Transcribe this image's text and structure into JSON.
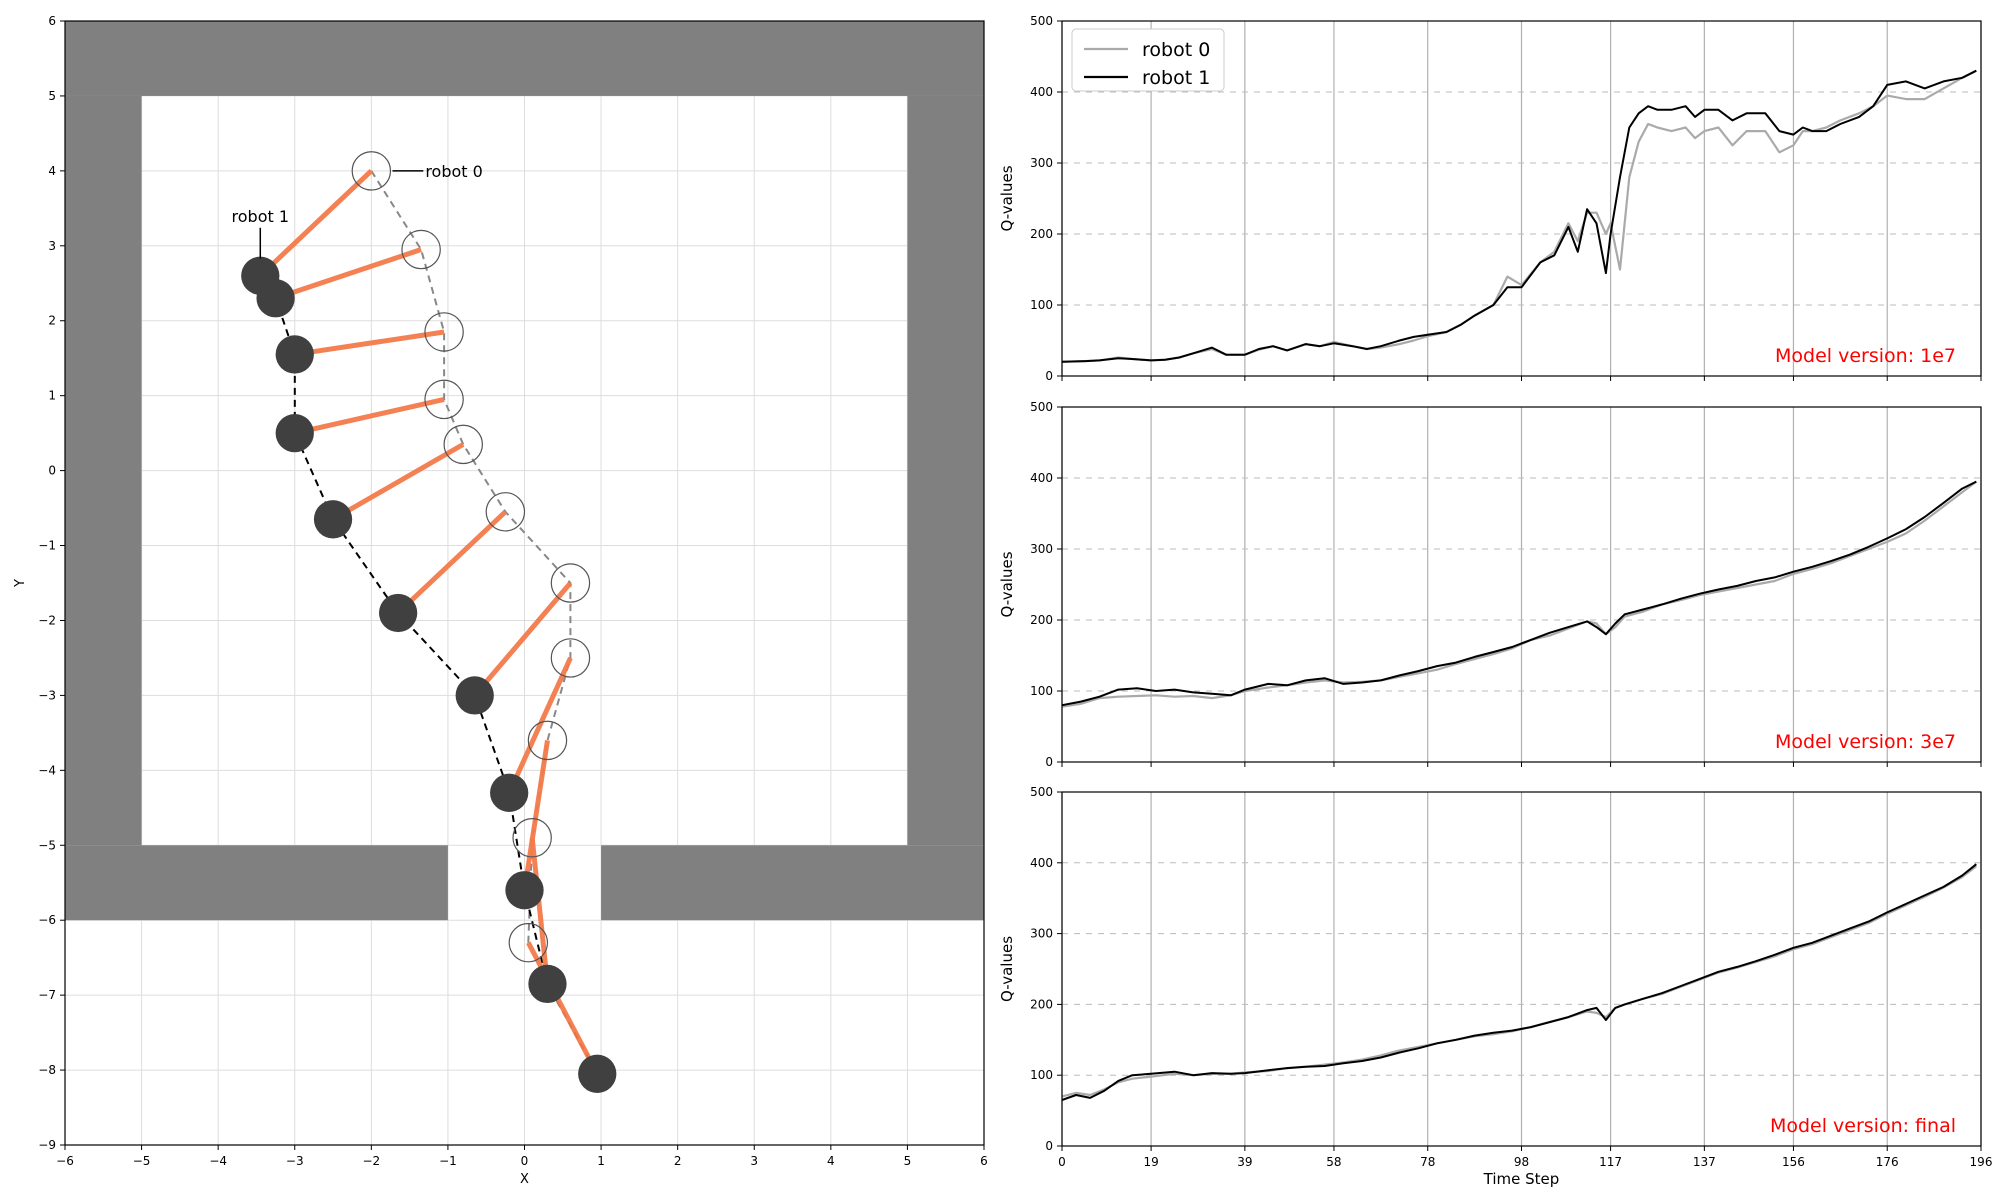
{
  "figure": {
    "width": 2000,
    "height": 1200
  },
  "chart_data": [
    {
      "type": "scatter",
      "subtype": "trajectory-map",
      "xlabel": "X",
      "ylabel": "Y",
      "xlim": [
        -6,
        6
      ],
      "ylim": [
        -9,
        6
      ],
      "xticks": [
        "−6",
        "−5",
        "−4",
        "−3",
        "−2",
        "−1",
        "0",
        "1",
        "2",
        "3",
        "4",
        "5",
        "6"
      ],
      "yticks": [
        "−9",
        "−8",
        "−7",
        "−6",
        "−5",
        "−4",
        "−3",
        "−2",
        "−1",
        "0",
        "1",
        "2",
        "3",
        "4",
        "5",
        "6"
      ],
      "grid": true,
      "walls": [
        {
          "x0": -6,
          "x1": 6,
          "y0": 5,
          "y1": 6
        },
        {
          "x0": -6,
          "x1": -5,
          "y0": -5,
          "y1": 5
        },
        {
          "x0": 5,
          "x1": 6,
          "y0": -5,
          "y1": 5
        },
        {
          "x0": -6,
          "x1": -1,
          "y0": -6,
          "y1": -5
        },
        {
          "x0": 1,
          "x1": 6,
          "y0": -6,
          "y1": -5
        }
      ],
      "colors": {
        "wall": "#808080",
        "link": "#f47b4a",
        "robot1": "#404040",
        "robot0_edge": "#555555",
        "robot0_path": "#888888",
        "robot1_path": "#000000"
      },
      "robot0": {
        "label": "robot 0",
        "points": [
          [
            -2.0,
            4.0
          ],
          [
            -1.35,
            2.95
          ],
          [
            -1.05,
            1.85
          ],
          [
            -1.05,
            0.95
          ],
          [
            -0.8,
            0.35
          ],
          [
            -0.25,
            -0.55
          ],
          [
            0.6,
            -1.5
          ],
          [
            0.6,
            -2.5
          ],
          [
            0.3,
            -3.6
          ],
          [
            0.1,
            -4.9
          ],
          [
            0.05,
            -6.3
          ]
        ]
      },
      "robot1": {
        "label": "robot 1",
        "points": [
          [
            -3.45,
            2.6
          ],
          [
            -3.25,
            2.3
          ],
          [
            -3.0,
            1.55
          ],
          [
            -3.0,
            0.5
          ],
          [
            -2.5,
            -0.65
          ],
          [
            -1.65,
            -1.9
          ],
          [
            -0.65,
            -3.0
          ],
          [
            -0.2,
            -4.3
          ],
          [
            0.0,
            -5.6
          ],
          [
            0.3,
            -6.85
          ],
          [
            0.95,
            -8.05
          ]
        ]
      }
    },
    {
      "type": "line",
      "ylabel": "Q-values",
      "xlabel": "",
      "xlim": [
        0,
        196
      ],
      "ylim": [
        0,
        500
      ],
      "xticks": [
        0,
        19,
        39,
        58,
        78,
        98,
        117,
        137,
        156,
        176,
        196
      ],
      "yticks": [
        0,
        100,
        200,
        300,
        400,
        500
      ],
      "annotation": "Model version: 1e7",
      "legend": {
        "position": "top-left"
      },
      "series": [
        {
          "name": "robot 0",
          "color": "#aaaaaa",
          "x": [
            0,
            5,
            8,
            12,
            15,
            19,
            22,
            25,
            28,
            32,
            35,
            39,
            42,
            45,
            48,
            52,
            55,
            58,
            62,
            65,
            68,
            72,
            75,
            78,
            82,
            85,
            88,
            92,
            95,
            98,
            102,
            105,
            108,
            110,
            112,
            114,
            116,
            117,
            119,
            121,
            123,
            125,
            127,
            130,
            133,
            135,
            137,
            140,
            143,
            146,
            150,
            153,
            156,
            158,
            160,
            163,
            166,
            170,
            173,
            176,
            180,
            184,
            188,
            192,
            195
          ],
          "y": [
            20,
            21,
            22,
            26,
            24,
            22,
            23,
            26,
            32,
            38,
            30,
            30,
            37,
            42,
            36,
            45,
            42,
            48,
            42,
            38,
            40,
            45,
            50,
            56,
            62,
            72,
            85,
            100,
            140,
            128,
            160,
            175,
            215,
            190,
            230,
            230,
            200,
            215,
            150,
            280,
            330,
            355,
            350,
            345,
            350,
            335,
            345,
            350,
            325,
            345,
            345,
            315,
            325,
            345,
            345,
            350,
            360,
            370,
            380,
            395,
            390,
            390,
            405,
            420,
            430
          ]
        },
        {
          "name": "robot 1",
          "color": "#000000",
          "x": [
            0,
            5,
            8,
            12,
            15,
            19,
            22,
            25,
            28,
            32,
            35,
            39,
            42,
            45,
            48,
            52,
            55,
            58,
            62,
            65,
            68,
            72,
            75,
            78,
            82,
            85,
            88,
            92,
            95,
            98,
            102,
            105,
            108,
            110,
            112,
            114,
            116,
            117,
            119,
            121,
            123,
            125,
            127,
            130,
            133,
            135,
            137,
            140,
            143,
            146,
            150,
            153,
            156,
            158,
            160,
            163,
            166,
            170,
            173,
            176,
            180,
            184,
            188,
            192,
            195
          ],
          "y": [
            20,
            21,
            22,
            25,
            24,
            22,
            23,
            26,
            32,
            40,
            30,
            30,
            38,
            42,
            36,
            45,
            42,
            46,
            42,
            38,
            42,
            50,
            55,
            58,
            62,
            72,
            85,
            100,
            125,
            125,
            160,
            170,
            210,
            175,
            235,
            215,
            145,
            200,
            280,
            350,
            370,
            380,
            375,
            375,
            380,
            365,
            375,
            375,
            360,
            370,
            370,
            345,
            340,
            350,
            345,
            345,
            355,
            365,
            380,
            410,
            415,
            405,
            415,
            420,
            430
          ]
        }
      ]
    },
    {
      "type": "line",
      "ylabel": "Q-values",
      "xlabel": "",
      "xlim": [
        0,
        196
      ],
      "ylim": [
        0,
        500
      ],
      "xticks": [
        0,
        19,
        39,
        58,
        78,
        98,
        117,
        137,
        156,
        176,
        196
      ],
      "yticks": [
        0,
        100,
        200,
        300,
        400,
        500
      ],
      "annotation": "Model version: 3e7",
      "series": [
        {
          "name": "robot 0",
          "color": "#aaaaaa",
          "x": [
            0,
            4,
            8,
            12,
            16,
            20,
            24,
            28,
            32,
            36,
            39,
            44,
            48,
            52,
            56,
            60,
            64,
            68,
            72,
            76,
            80,
            84,
            88,
            92,
            96,
            100,
            104,
            108,
            112,
            114,
            116,
            118,
            120,
            124,
            128,
            132,
            136,
            140,
            144,
            148,
            152,
            156,
            160,
            164,
            168,
            172,
            176,
            180,
            184,
            188,
            192,
            195
          ],
          "y": [
            78,
            82,
            90,
            92,
            93,
            94,
            92,
            93,
            90,
            94,
            100,
            105,
            108,
            112,
            115,
            112,
            113,
            115,
            120,
            125,
            130,
            138,
            145,
            152,
            160,
            172,
            178,
            188,
            198,
            195,
            180,
            190,
            205,
            212,
            222,
            228,
            235,
            240,
            245,
            250,
            255,
            265,
            272,
            280,
            290,
            300,
            310,
            322,
            340,
            360,
            380,
            395
          ]
        },
        {
          "name": "robot 1",
          "color": "#000000",
          "x": [
            0,
            4,
            8,
            12,
            16,
            20,
            24,
            28,
            32,
            36,
            39,
            44,
            48,
            52,
            56,
            60,
            64,
            68,
            72,
            76,
            80,
            84,
            88,
            92,
            96,
            100,
            104,
            108,
            112,
            114,
            116,
            118,
            120,
            124,
            128,
            132,
            136,
            140,
            144,
            148,
            152,
            156,
            160,
            164,
            168,
            172,
            176,
            180,
            184,
            188,
            192,
            195
          ],
          "y": [
            80,
            85,
            92,
            102,
            104,
            100,
            102,
            98,
            96,
            94,
            102,
            110,
            108,
            115,
            118,
            110,
            112,
            115,
            122,
            128,
            135,
            140,
            148,
            155,
            162,
            172,
            182,
            190,
            198,
            190,
            180,
            195,
            208,
            215,
            222,
            230,
            237,
            243,
            248,
            255,
            260,
            268,
            275,
            283,
            292,
            303,
            315,
            328,
            345,
            365,
            385,
            395
          ]
        }
      ]
    },
    {
      "type": "line",
      "ylabel": "Q-values",
      "xlabel": "Time Step",
      "xlim": [
        0,
        196
      ],
      "ylim": [
        0,
        500
      ],
      "xticks": [
        0,
        19,
        39,
        58,
        78,
        98,
        117,
        137,
        156,
        176,
        196
      ],
      "yticks": [
        0,
        100,
        200,
        300,
        400,
        500
      ],
      "annotation": "Model version: final",
      "series": [
        {
          "name": "robot 0",
          "color": "#aaaaaa",
          "x": [
            0,
            3,
            6,
            9,
            12,
            15,
            19,
            24,
            28,
            32,
            36,
            39,
            44,
            48,
            52,
            56,
            60,
            64,
            68,
            72,
            76,
            80,
            84,
            88,
            92,
            96,
            100,
            104,
            108,
            112,
            114,
            116,
            118,
            120,
            124,
            128,
            132,
            136,
            140,
            144,
            148,
            152,
            156,
            160,
            164,
            168,
            172,
            176,
            180,
            184,
            188,
            192,
            195
          ],
          "y": [
            70,
            75,
            72,
            80,
            90,
            95,
            98,
            102,
            100,
            102,
            102,
            104,
            106,
            110,
            112,
            115,
            118,
            122,
            128,
            135,
            140,
            145,
            150,
            155,
            158,
            162,
            168,
            175,
            182,
            190,
            188,
            182,
            195,
            200,
            208,
            215,
            225,
            235,
            245,
            252,
            260,
            268,
            278,
            285,
            295,
            305,
            315,
            328,
            340,
            352,
            365,
            380,
            395
          ]
        },
        {
          "name": "robot 1",
          "color": "#000000",
          "x": [
            0,
            3,
            6,
            9,
            12,
            15,
            19,
            24,
            28,
            32,
            36,
            39,
            44,
            48,
            52,
            56,
            60,
            64,
            68,
            72,
            76,
            80,
            84,
            88,
            92,
            96,
            100,
            104,
            108,
            112,
            114,
            116,
            118,
            120,
            124,
            128,
            132,
            136,
            140,
            144,
            148,
            152,
            156,
            160,
            164,
            168,
            172,
            176,
            180,
            184,
            188,
            192,
            195
          ],
          "y": [
            65,
            72,
            68,
            78,
            92,
            100,
            102,
            105,
            100,
            103,
            102,
            103,
            107,
            110,
            112,
            113,
            117,
            120,
            125,
            132,
            138,
            145,
            150,
            156,
            160,
            163,
            168,
            175,
            182,
            192,
            195,
            178,
            195,
            200,
            208,
            216,
            226,
            236,
            246,
            253,
            261,
            270,
            280,
            287,
            297,
            307,
            317,
            330,
            342,
            354,
            366,
            382,
            398
          ]
        }
      ]
    }
  ]
}
